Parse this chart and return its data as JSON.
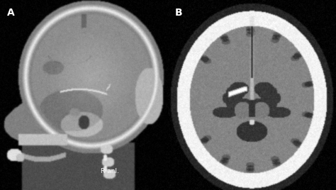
{
  "fig_width": 4.74,
  "fig_height": 2.68,
  "dpi": 100,
  "background_color": "#000000",
  "label_A": "A",
  "label_B": "B",
  "label_R_anl": "R anl.",
  "label_color": "#ffffff",
  "label_fontsize": 10,
  "small_label_fontsize": 6.5
}
